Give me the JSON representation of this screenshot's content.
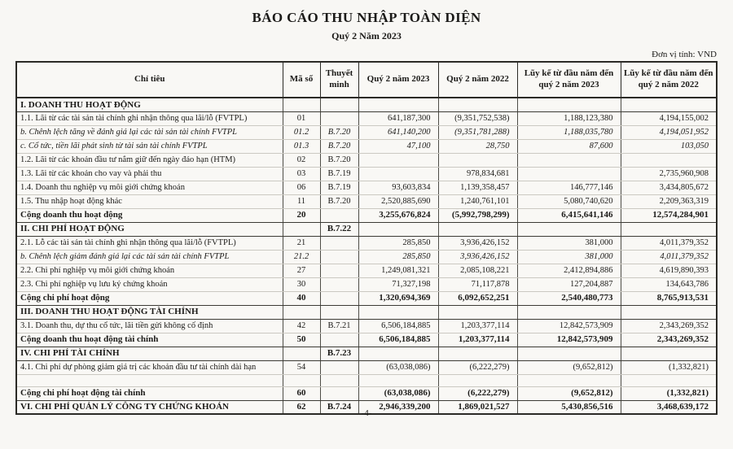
{
  "page": {
    "title": "BÁO CÁO THU NHẬP TOÀN DIỆN",
    "subtitle": "Quý 2 Năm 2023",
    "unit_label": "Đơn vị tính: VND",
    "page_number": "-4-"
  },
  "table": {
    "columns": [
      "Chỉ tiêu",
      "Mã số",
      "Thuyết minh",
      "Quý 2 năm 2023",
      "Quý 2 năm 2022",
      "Lũy kế từ đầu năm đến quý 2 năm 2023",
      "Lũy kế từ đầu năm đến quý 2 năm 2022"
    ],
    "rows": [
      {
        "style": "section",
        "label": "I. DOANH THU HOẠT ĐỘNG",
        "ma_so": "",
        "thuyet_minh": "",
        "v1": "",
        "v2": "",
        "v3": "",
        "v4": ""
      },
      {
        "style": "normal",
        "label": "1.1. Lãi từ các tài sản tài chính ghi nhận thông qua lãi/lỗ (FVTPL)",
        "ma_so": "01",
        "thuyet_minh": "",
        "v1": "641,187,300",
        "v2": "(9,351,752,538)",
        "v3": "1,188,123,380",
        "v4": "4,194,155,002"
      },
      {
        "style": "italic",
        "label": "b. Chênh lệch tăng về đánh giá lại các tài sản tài chính FVTPL",
        "ma_so": "01.2",
        "thuyet_minh": "B.7.20",
        "v1": "641,140,200",
        "v2": "(9,351,781,288)",
        "v3": "1,188,035,780",
        "v4": "4,194,051,952"
      },
      {
        "style": "italic",
        "label": "c. Cổ tức, tiền lãi phát sinh từ tài sản tài chính FVTPL",
        "ma_so": "01.3",
        "thuyet_minh": "B.7.20",
        "v1": "47,100",
        "v2": "28,750",
        "v3": "87,600",
        "v4": "103,050"
      },
      {
        "style": "normal",
        "label": "1.2. Lãi từ các khoản đầu tư nắm giữ đến ngày đáo hạn (HTM)",
        "ma_so": "02",
        "thuyet_minh": "B.7.20",
        "v1": "",
        "v2": "",
        "v3": "",
        "v4": ""
      },
      {
        "style": "normal",
        "label": "1.3. Lãi từ các khoản cho vay và phải thu",
        "ma_so": "03",
        "thuyet_minh": "B.7.19",
        "v1": "",
        "v2": "978,834,681",
        "v3": "",
        "v4": "2,735,960,908"
      },
      {
        "style": "normal",
        "label": "1.4. Doanh thu nghiệp vụ môi giới chứng khoán",
        "ma_so": "06",
        "thuyet_minh": "B.7.19",
        "v1": "93,603,834",
        "v2": "1,139,358,457",
        "v3": "146,777,146",
        "v4": "3,434,805,672"
      },
      {
        "style": "normal",
        "label": "1.5. Thu nhập hoạt động khác",
        "ma_so": "11",
        "thuyet_minh": "B.7.20",
        "v1": "2,520,885,690",
        "v2": "1,240,761,101",
        "v3": "5,080,740,620",
        "v4": "2,209,363,319"
      },
      {
        "style": "total",
        "label": "Cộng doanh thu hoạt động",
        "ma_so": "20",
        "thuyet_minh": "",
        "v1": "3,255,676,824",
        "v2": "(5,992,798,299)",
        "v3": "6,415,641,146",
        "v4": "12,574,284,901"
      },
      {
        "style": "section",
        "label": "II. CHI PHÍ HOẠT ĐỘNG",
        "ma_so": "",
        "thuyet_minh": "B.7.22",
        "v1": "",
        "v2": "",
        "v3": "",
        "v4": ""
      },
      {
        "style": "normal",
        "label": "2.1. Lỗ các tài sản tài chính ghi nhận thông qua lãi/lỗ (FVTPL)",
        "ma_so": "21",
        "thuyet_minh": "",
        "v1": "285,850",
        "v2": "3,936,426,152",
        "v3": "381,000",
        "v4": "4,011,379,352"
      },
      {
        "style": "italic",
        "label": "b. Chênh lệch giảm đánh giá lại các tài sản tài chính FVTPL",
        "ma_so": "21.2",
        "thuyet_minh": "",
        "v1": "285,850",
        "v2": "3,936,426,152",
        "v3": "381,000",
        "v4": "4,011,379,352"
      },
      {
        "style": "normal",
        "label": "2.2. Chi phí nghiệp vụ môi giới chứng khoán",
        "ma_so": "27",
        "thuyet_minh": "",
        "v1": "1,249,081,321",
        "v2": "2,085,108,221",
        "v3": "2,412,894,886",
        "v4": "4,619,890,393"
      },
      {
        "style": "normal",
        "label": "2.3. Chi phí nghiệp vụ lưu ký chứng khoán",
        "ma_so": "30",
        "thuyet_minh": "",
        "v1": "71,327,198",
        "v2": "71,117,878",
        "v3": "127,204,887",
        "v4": "134,643,786"
      },
      {
        "style": "total",
        "label": "Cộng chi phí hoạt động",
        "ma_so": "40",
        "thuyet_minh": "",
        "v1": "1,320,694,369",
        "v2": "6,092,652,251",
        "v3": "2,540,480,773",
        "v4": "8,765,913,531"
      },
      {
        "style": "section",
        "label": "III. DOANH THU HOẠT ĐỘNG TÀI CHÍNH",
        "ma_so": "",
        "thuyet_minh": "",
        "v1": "",
        "v2": "",
        "v3": "",
        "v4": ""
      },
      {
        "style": "normal",
        "label": "3.1. Doanh thu, dự thu cổ tức, lãi tiền gửi không cố định",
        "ma_so": "42",
        "thuyet_minh": "B.7.21",
        "v1": "6,506,184,885",
        "v2": "1,203,377,114",
        "v3": "12,842,573,909",
        "v4": "2,343,269,352"
      },
      {
        "style": "total",
        "label": "Cộng doanh thu hoạt động tài chính",
        "ma_so": "50",
        "thuyet_minh": "",
        "v1": "6,506,184,885",
        "v2": "1,203,377,114",
        "v3": "12,842,573,909",
        "v4": "2,343,269,352"
      },
      {
        "style": "section",
        "label": "IV. CHI PHÍ TÀI CHÍNH",
        "ma_so": "",
        "thuyet_minh": "B.7.23",
        "v1": "",
        "v2": "",
        "v3": "",
        "v4": ""
      },
      {
        "style": "normal",
        "label": "4.1. Chi phí dự phòng giảm giá trị các khoản đầu tư tài chính dài hạn",
        "ma_so": "54",
        "thuyet_minh": "",
        "v1": "(63,038,086)",
        "v2": "(6,222,279)",
        "v3": "(9,652,812)",
        "v4": "(1,332,821)"
      },
      {
        "style": "empty",
        "label": "",
        "ma_so": "",
        "thuyet_minh": "",
        "v1": "",
        "v2": "",
        "v3": "",
        "v4": ""
      },
      {
        "style": "total",
        "label": "Cộng chi phí hoạt động tài chính",
        "ma_so": "60",
        "thuyet_minh": "",
        "v1": "(63,038,086)",
        "v2": "(6,222,279)",
        "v3": "(9,652,812)",
        "v4": "(1,332,821)"
      },
      {
        "style": "total",
        "label": "VI. CHI PHÍ QUẢN LÝ CÔNG TY CHỨNG KHOÁN",
        "ma_so": "62",
        "thuyet_minh": "B.7.24",
        "v1": "2,946,339,200",
        "v2": "1,869,021,527",
        "v3": "5,430,856,516",
        "v4": "3,468,639,172"
      }
    ]
  }
}
